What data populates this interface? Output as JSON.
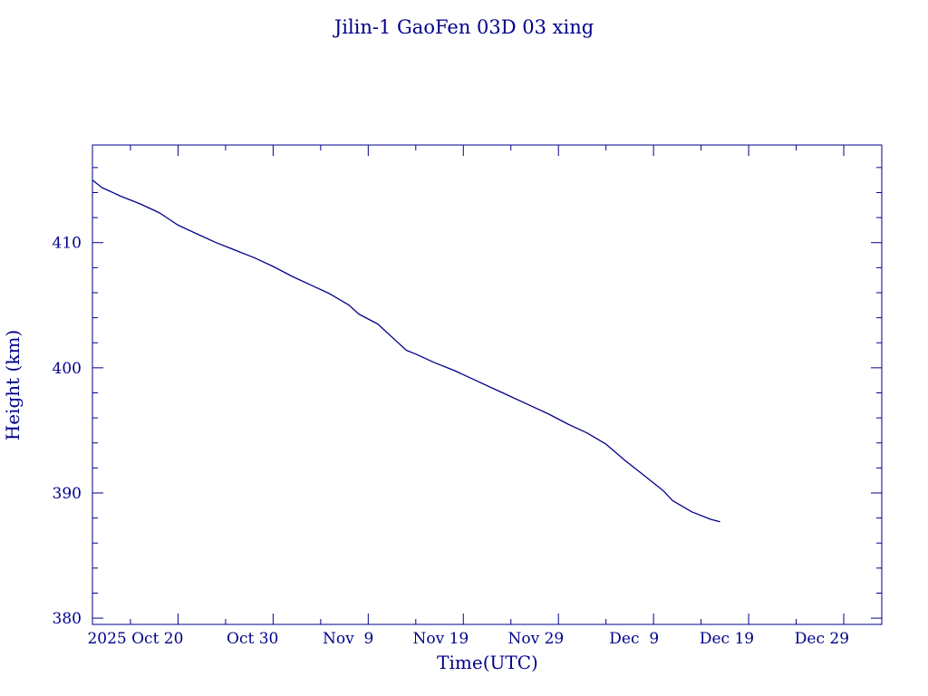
{
  "chart_data": {
    "type": "line",
    "title": "Jilin-1 GaoFen 03D 03 xing",
    "xlabel": "Time(UTC)",
    "ylabel": "Height (km)",
    "color": "#00008B",
    "x_range": [
      "2025-10-11",
      "2026-01-02"
    ],
    "ylim": [
      379.5,
      417.8
    ],
    "grid": false,
    "legend": "none",
    "x_tick_labels": [
      {
        "date": "2025-10-20",
        "label": "2025 Oct 20"
      },
      {
        "date": "2025-10-30",
        "label": "Oct 30"
      },
      {
        "date": "2025-11-09",
        "label": "Nov  9"
      },
      {
        "date": "2025-11-19",
        "label": "Nov 19"
      },
      {
        "date": "2025-11-29",
        "label": "Nov 29"
      },
      {
        "date": "2025-12-09",
        "label": "Dec  9"
      },
      {
        "date": "2025-12-19",
        "label": "Dec 19"
      },
      {
        "date": "2025-12-29",
        "label": "Dec 29"
      }
    ],
    "y_tick_labels": [
      {
        "value": 380,
        "label": "380"
      },
      {
        "value": 390,
        "label": "390"
      },
      {
        "value": 400,
        "label": "400"
      },
      {
        "value": 410,
        "label": "410"
      }
    ],
    "series": [
      {
        "x": [
          "2025-10-11",
          "2025-10-12",
          "2025-10-14",
          "2025-10-16",
          "2025-10-18",
          "2025-10-19",
          "2025-10-20",
          "2025-10-22",
          "2025-10-24",
          "2025-10-26",
          "2025-10-28",
          "2025-10-30",
          "2025-11-01",
          "2025-11-03",
          "2025-11-05",
          "2025-11-07",
          "2025-11-08",
          "2025-11-10",
          "2025-11-12",
          "2025-11-13",
          "2025-11-14",
          "2025-11-16",
          "2025-11-18",
          "2025-11-20",
          "2025-11-22",
          "2025-11-24",
          "2025-11-26",
          "2025-11-28",
          "2025-11-30",
          "2025-12-02",
          "2025-12-04",
          "2025-12-06",
          "2025-12-08",
          "2025-12-10",
          "2025-12-11",
          "2025-12-13",
          "2025-12-15",
          "2025-12-16"
        ],
        "values": [
          415.0,
          414.4,
          413.7,
          413.1,
          412.4,
          411.9,
          411.4,
          410.7,
          410.0,
          409.4,
          408.8,
          408.1,
          407.3,
          406.6,
          405.9,
          405.0,
          404.3,
          403.5,
          402.1,
          401.4,
          401.1,
          400.4,
          399.8,
          399.1,
          398.4,
          397.7,
          397.0,
          396.3,
          395.5,
          394.8,
          393.9,
          392.6,
          391.4,
          390.2,
          389.4,
          388.5,
          387.9,
          387.7
        ]
      }
    ]
  }
}
